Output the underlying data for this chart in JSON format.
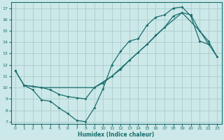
{
  "xlabel": "Humidex (Indice chaleur)",
  "bg_color": "#cce8e8",
  "grid_color": "#aacccc",
  "line_color": "#1a6e6e",
  "xlim": [
    -0.5,
    23.5
  ],
  "ylim": [
    6.8,
    17.5
  ],
  "xticks": [
    0,
    1,
    2,
    3,
    4,
    5,
    6,
    7,
    8,
    9,
    10,
    11,
    12,
    13,
    14,
    15,
    16,
    17,
    18,
    19,
    20,
    21,
    22,
    23
  ],
  "yticks": [
    7,
    8,
    9,
    10,
    11,
    12,
    13,
    14,
    15,
    16,
    17
  ],
  "line1_x": [
    0,
    1,
    2,
    3,
    4,
    5,
    6,
    7,
    8,
    9,
    10,
    11,
    12,
    13,
    14,
    15,
    16,
    17,
    18,
    19,
    20,
    21,
    22
  ],
  "line1_y": [
    11.5,
    10.2,
    9.8,
    8.9,
    8.8,
    8.2,
    7.7,
    7.1,
    7.0,
    8.2,
    9.9,
    12.0,
    13.2,
    14.1,
    14.3,
    15.5,
    16.2,
    16.4,
    17.0,
    17.1,
    16.3,
    14.1,
    13.8
  ],
  "line2_x": [
    0,
    1,
    2,
    3,
    4,
    5,
    6,
    7,
    8,
    9,
    10,
    11,
    12,
    13,
    14,
    15,
    16,
    17,
    18,
    19,
    20,
    21,
    22,
    23
  ],
  "line2_y": [
    11.5,
    10.2,
    10.1,
    10.0,
    9.8,
    9.4,
    9.2,
    9.1,
    9.0,
    10.0,
    10.4,
    11.0,
    11.6,
    12.4,
    13.1,
    13.8,
    14.6,
    15.3,
    16.3,
    16.6,
    16.4,
    15.0,
    14.1,
    12.7
  ],
  "line3_x": [
    1,
    3,
    9,
    11,
    13,
    15,
    17,
    19,
    21,
    23
  ],
  "line3_y": [
    10.2,
    10.0,
    10.0,
    11.0,
    12.4,
    13.8,
    15.3,
    16.6,
    15.0,
    12.7
  ]
}
